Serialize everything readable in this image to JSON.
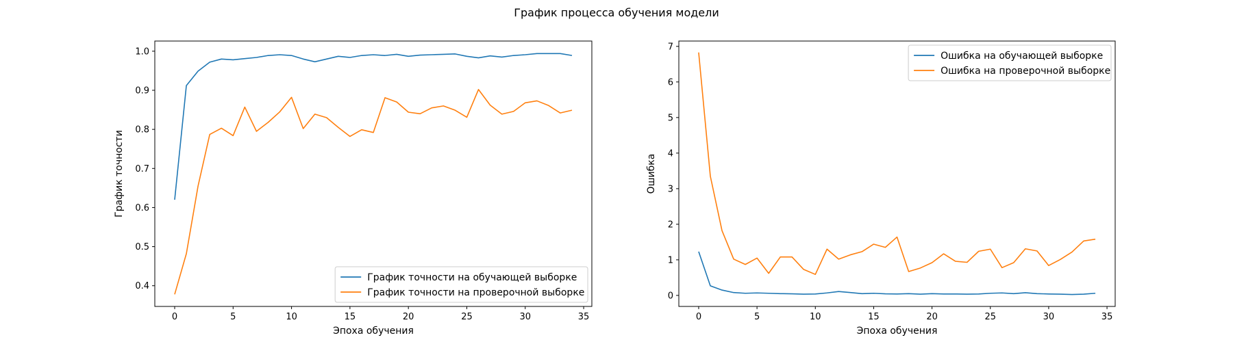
{
  "suptitle": "График процесса обучения модели",
  "colors": {
    "blue": "#1f77b4",
    "orange": "#ff7f0e"
  },
  "chart_data": [
    {
      "type": "line",
      "title": "",
      "xlabel": "Эпоха обучения",
      "ylabel": "График точности",
      "xlim": [
        -1.7,
        35.7
      ],
      "ylim": [
        0.347,
        1.026
      ],
      "xticks": [
        0,
        5,
        10,
        15,
        20,
        25,
        30,
        35
      ],
      "yticks": [
        0.4,
        0.5,
        0.6,
        0.7,
        0.8,
        0.9,
        1.0
      ],
      "ytick_labels": [
        "0.4",
        "0.5",
        "0.6",
        "0.7",
        "0.8",
        "0.9",
        "1.0"
      ],
      "grid": false,
      "legend_position": "lower-right",
      "x": [
        0,
        1,
        2,
        3,
        4,
        5,
        6,
        7,
        8,
        9,
        10,
        11,
        12,
        13,
        14,
        15,
        16,
        17,
        18,
        19,
        20,
        21,
        22,
        23,
        24,
        25,
        26,
        27,
        28,
        29,
        30,
        31,
        32,
        33,
        34
      ],
      "series": [
        {
          "name": "График точности на обучающей выборке",
          "color": "#1f77b4",
          "values": [
            0.62,
            0.912,
            0.949,
            0.972,
            0.98,
            0.978,
            0.981,
            0.984,
            0.989,
            0.991,
            0.989,
            0.98,
            0.973,
            0.98,
            0.987,
            0.984,
            0.989,
            0.991,
            0.989,
            0.992,
            0.987,
            0.99,
            0.991,
            0.992,
            0.993,
            0.987,
            0.983,
            0.988,
            0.985,
            0.989,
            0.991,
            0.994,
            0.994,
            0.994,
            0.989
          ]
        },
        {
          "name": "График точности на проверочной выборке",
          "color": "#ff7f0e",
          "values": [
            0.378,
            0.482,
            0.655,
            0.787,
            0.803,
            0.784,
            0.857,
            0.795,
            0.818,
            0.845,
            0.882,
            0.802,
            0.839,
            0.83,
            0.805,
            0.782,
            0.799,
            0.792,
            0.881,
            0.87,
            0.844,
            0.84,
            0.855,
            0.86,
            0.849,
            0.831,
            0.902,
            0.862,
            0.839,
            0.846,
            0.868,
            0.873,
            0.861,
            0.842,
            0.849
          ]
        }
      ]
    },
    {
      "type": "line",
      "title": "",
      "xlabel": "Эпоха обучения",
      "ylabel": "Ошибка",
      "xlim": [
        -1.7,
        35.7
      ],
      "ylim": [
        -0.31,
        7.15
      ],
      "xticks": [
        0,
        5,
        10,
        15,
        20,
        25,
        30,
        35
      ],
      "yticks": [
        0,
        1,
        2,
        3,
        4,
        5,
        6,
        7
      ],
      "ytick_labels": [
        "0",
        "1",
        "2",
        "3",
        "4",
        "5",
        "6",
        "7"
      ],
      "grid": false,
      "legend_position": "upper-right",
      "x": [
        0,
        1,
        2,
        3,
        4,
        5,
        6,
        7,
        8,
        9,
        10,
        11,
        12,
        13,
        14,
        15,
        16,
        17,
        18,
        19,
        20,
        21,
        22,
        23,
        24,
        25,
        26,
        27,
        28,
        29,
        30,
        31,
        32,
        33,
        34
      ],
      "series": [
        {
          "name": "Ошибка на обучающей выборке",
          "color": "#1f77b4",
          "values": [
            1.23,
            0.27,
            0.15,
            0.08,
            0.06,
            0.07,
            0.06,
            0.05,
            0.045,
            0.035,
            0.04,
            0.07,
            0.11,
            0.08,
            0.05,
            0.06,
            0.045,
            0.04,
            0.05,
            0.035,
            0.05,
            0.04,
            0.04,
            0.035,
            0.04,
            0.06,
            0.07,
            0.05,
            0.075,
            0.05,
            0.04,
            0.035,
            0.025,
            0.035,
            0.06
          ]
        },
        {
          "name": "Ошибка на проверочной выборке",
          "color": "#ff7f0e",
          "values": [
            6.83,
            3.35,
            1.82,
            1.02,
            0.87,
            1.05,
            0.62,
            1.08,
            1.08,
            0.73,
            0.59,
            1.3,
            1.02,
            1.14,
            1.23,
            1.44,
            1.35,
            1.64,
            0.67,
            0.77,
            0.92,
            1.17,
            0.96,
            0.93,
            1.24,
            1.3,
            0.78,
            0.92,
            1.31,
            1.25,
            0.84,
            1.01,
            1.22,
            1.53,
            1.58
          ]
        }
      ]
    }
  ]
}
